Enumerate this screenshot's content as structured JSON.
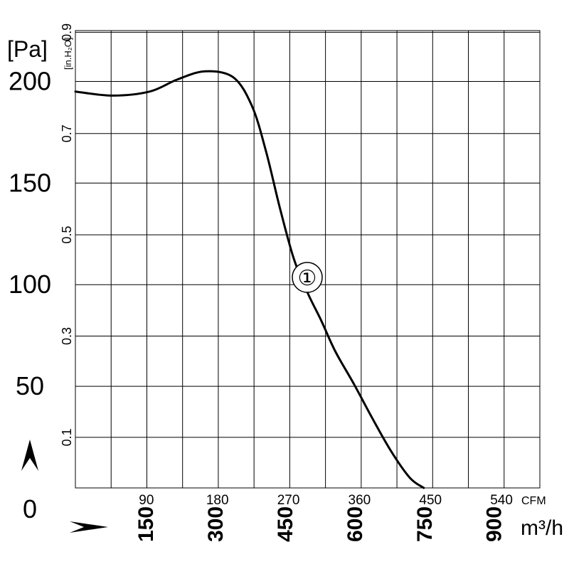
{
  "chart_data": {
    "type": "line",
    "units": {
      "pressure_pa": "[Pa]",
      "pressure_in": "[in.H₂O]",
      "flow_cfm": "CFM",
      "flow_m3h": "m³/h"
    },
    "pa_ticks": [
      "0",
      "50",
      "100",
      "150",
      "200"
    ],
    "in_ticks": [
      "0.1",
      "0.3",
      "0.5",
      "0.7",
      "0.9"
    ],
    "cfm_ticks": [
      "90",
      "180",
      "270",
      "360",
      "450",
      "540"
    ],
    "m3h_ticks": [
      "150",
      "300",
      "450",
      "600",
      "750",
      "900"
    ],
    "xlim": [
      0,
      1000
    ],
    "ylim": [
      0,
      225
    ],
    "series": [
      {
        "label": "①",
        "x_m3h": [
          0,
          80,
          160,
          220,
          280,
          340,
          380,
          410,
          440,
          470,
          500,
          530,
          560,
          600,
          640,
          680,
          720,
          750
        ],
        "y_pa": [
          195,
          193,
          195,
          201,
          205,
          202,
          188,
          166,
          138,
          113,
          96,
          82,
          67,
          51,
          34,
          18,
          5,
          0
        ]
      }
    ]
  }
}
